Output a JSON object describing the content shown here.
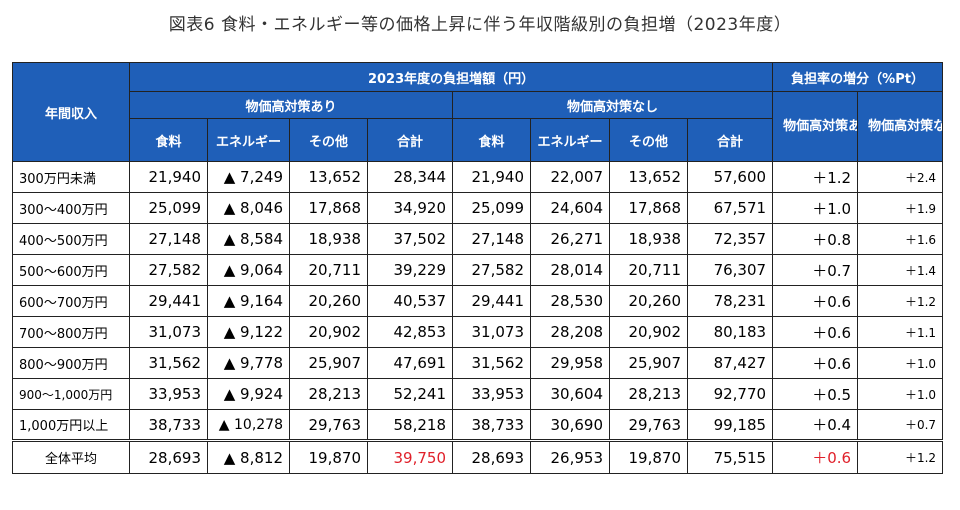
{
  "title": "図表6 食料・エネルギー等の価格上昇に伴う年収階級別の負担増（2023年度）",
  "headers": {
    "income": "年間収入",
    "burden_amount": "2023年度の負担増額（円）",
    "burden_rate": "負担率の増分（%Pt）",
    "with_measures": "物価高対策あり",
    "without_measures": "物価高対策なし",
    "rate_with": "物価高対策あり",
    "rate_without": "物価高対策なし",
    "food": "食料",
    "energy": "エネルギー",
    "other": "その他",
    "total": "合計"
  },
  "rows": [
    {
      "label": "300万円未満",
      "w_food": "21,940",
      "w_energy": "▲ 7,249",
      "w_other": "13,652",
      "w_total": "28,344",
      "n_food": "21,940",
      "n_energy": "22,007",
      "n_other": "13,652",
      "n_total": "57,600",
      "rate_w": "＋1.2",
      "rate_n": "＋2.4"
    },
    {
      "label": "300～400万円",
      "w_food": "25,099",
      "w_energy": "▲ 8,046",
      "w_other": "17,868",
      "w_total": "34,920",
      "n_food": "25,099",
      "n_energy": "24,604",
      "n_other": "17,868",
      "n_total": "67,571",
      "rate_w": "＋1.0",
      "rate_n": "＋1.9"
    },
    {
      "label": "400～500万円",
      "w_food": "27,148",
      "w_energy": "▲ 8,584",
      "w_other": "18,938",
      "w_total": "37,502",
      "n_food": "27,148",
      "n_energy": "26,271",
      "n_other": "18,938",
      "n_total": "72,357",
      "rate_w": "＋0.8",
      "rate_n": "＋1.6"
    },
    {
      "label": "500～600万円",
      "w_food": "27,582",
      "w_energy": "▲ 9,064",
      "w_other": "20,711",
      "w_total": "39,229",
      "n_food": "27,582",
      "n_energy": "28,014",
      "n_other": "20,711",
      "n_total": "76,307",
      "rate_w": "＋0.7",
      "rate_n": "＋1.4"
    },
    {
      "label": "600～700万円",
      "w_food": "29,441",
      "w_energy": "▲ 9,164",
      "w_other": "20,260",
      "w_total": "40,537",
      "n_food": "29,441",
      "n_energy": "28,530",
      "n_other": "20,260",
      "n_total": "78,231",
      "rate_w": "＋0.6",
      "rate_n": "＋1.2"
    },
    {
      "label": "700～800万円",
      "w_food": "31,073",
      "w_energy": "▲ 9,122",
      "w_other": "20,902",
      "w_total": "42,853",
      "n_food": "31,073",
      "n_energy": "28,208",
      "n_other": "20,902",
      "n_total": "80,183",
      "rate_w": "＋0.6",
      "rate_n": "＋1.1"
    },
    {
      "label": "800～900万円",
      "w_food": "31,562",
      "w_energy": "▲ 9,778",
      "w_other": "25,907",
      "w_total": "47,691",
      "n_food": "31,562",
      "n_energy": "29,958",
      "n_other": "25,907",
      "n_total": "87,427",
      "rate_w": "＋0.6",
      "rate_n": "＋1.0"
    },
    {
      "label": "900～1,000万円",
      "w_food": "33,953",
      "w_energy": "▲ 9,924",
      "w_other": "28,213",
      "w_total": "52,241",
      "n_food": "33,953",
      "n_energy": "30,604",
      "n_other": "28,213",
      "n_total": "92,770",
      "rate_w": "＋0.5",
      "rate_n": "＋1.0"
    },
    {
      "label": "1,000万円以上",
      "w_food": "38,733",
      "w_energy": "▲ 10,278",
      "w_other": "29,763",
      "w_total": "58,218",
      "n_food": "38,733",
      "n_energy": "30,690",
      "n_other": "29,763",
      "n_total": "99,185",
      "rate_w": "＋0.4",
      "rate_n": "＋0.7"
    }
  ],
  "average": {
    "label": "全体平均",
    "w_food": "28,693",
    "w_energy": "▲ 8,812",
    "w_other": "19,870",
    "w_total": "39,750",
    "n_food": "28,693",
    "n_energy": "26,953",
    "n_other": "19,870",
    "n_total": "75,515",
    "rate_w": "＋0.6",
    "rate_n": "＋1.2"
  },
  "colors": {
    "header_bg": "#1f5fb8",
    "highlight": "#e0202a"
  }
}
